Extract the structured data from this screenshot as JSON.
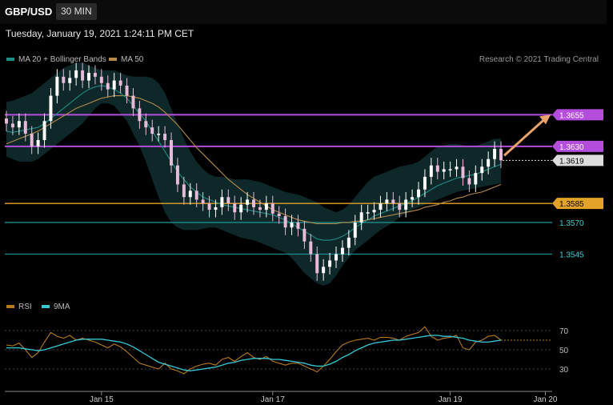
{
  "header": {
    "symbol": "GBP/USD",
    "timeframe": "30 MIN",
    "datetime": "Tuesday, January 19, 2021 1:24:11 PM CET"
  },
  "legend": {
    "ma_bb": "MA 20 + Bollinger Bands",
    "ma50": "MA 50",
    "rsi": "RSI",
    "ma9": "9MA"
  },
  "credit": "Research © 2021 Trading Central",
  "colors": {
    "bg": "#000000",
    "up": "#ffffff",
    "down": "#e8b9d8",
    "ma20": "#1f8c85",
    "ma50": "#b58a4a",
    "band": "#0f2a2b",
    "resistance": "#b44ddb",
    "support_orange": "#e3a328",
    "support_teal": "#1e8c8c",
    "rsi": "#b87a1f",
    "ma9": "#37c8d6",
    "arrow": "#e8a36a"
  },
  "chart_data": {
    "type": "line",
    "title": "GBP/USD",
    "price_axis": {
      "min": 1.3515,
      "max": 1.3695
    },
    "x_ticks": [
      {
        "index": 15,
        "label": "Jan 15"
      },
      {
        "index": 42,
        "label": "Jan 17"
      },
      {
        "index": 70,
        "label": "Jan 19"
      },
      {
        "index": 85,
        "label": "Jan 20"
      }
    ],
    "levels": [
      {
        "value": 1.3655,
        "label": "1.3655",
        "style": "resistance"
      },
      {
        "value": 1.363,
        "label": "1.3630",
        "style": "resistance"
      },
      {
        "value": 1.3619,
        "label": "1.3619",
        "style": "current"
      },
      {
        "value": 1.3585,
        "label": "1.3585",
        "style": "support_orange"
      },
      {
        "value": 1.357,
        "label": "1.3570",
        "style": "support_teal"
      },
      {
        "value": 1.3545,
        "label": "1.3545",
        "style": "support_teal"
      }
    ],
    "series": [
      {
        "name": "Close",
        "values": [
          1.3648,
          1.3645,
          1.365,
          1.364,
          1.363,
          1.3635,
          1.365,
          1.367,
          1.3685,
          1.368,
          1.3684,
          1.369,
          1.3682,
          1.3688,
          1.3685,
          1.368,
          1.3675,
          1.3682,
          1.3678,
          1.367,
          1.366,
          1.365,
          1.3645,
          1.364,
          1.364,
          1.3635,
          1.3615,
          1.36,
          1.359,
          1.3595,
          1.3588,
          1.3585,
          1.358,
          1.3582,
          1.359,
          1.3585,
          1.3578,
          1.3584,
          1.3588,
          1.3582,
          1.358,
          1.3585,
          1.3577,
          1.3575,
          1.3566,
          1.357,
          1.3565,
          1.3555,
          1.3545,
          1.353,
          1.3535,
          1.354,
          1.3545,
          1.355,
          1.3558,
          1.357,
          1.3578,
          1.3578,
          1.358,
          1.3585,
          1.3588,
          1.3585,
          1.358,
          1.3588,
          1.359,
          1.3596,
          1.3606,
          1.3615,
          1.361,
          1.3612,
          1.3612,
          1.3614,
          1.3605,
          1.36,
          1.3609,
          1.3614,
          1.362,
          1.3628,
          1.3619
        ]
      },
      {
        "name": "MA 20",
        "values": [
          1.3642,
          1.3641,
          1.3642,
          1.3643,
          1.3644,
          1.3645,
          1.3648,
          1.3652,
          1.3656,
          1.366,
          1.3664,
          1.3668,
          1.3672,
          1.3675,
          1.3677,
          1.3678,
          1.3677,
          1.3675,
          1.3672,
          1.3668,
          1.3662,
          1.3656,
          1.365,
          1.3642,
          1.3634,
          1.3626,
          1.3618,
          1.361,
          1.3604,
          1.3598,
          1.3594,
          1.359,
          1.3588,
          1.3586,
          1.3584,
          1.3583,
          1.3582,
          1.3581,
          1.358,
          1.3579,
          1.3578,
          1.3577,
          1.3576,
          1.3574,
          1.3572,
          1.3569,
          1.3566,
          1.3563,
          1.356,
          1.3557,
          1.3556,
          1.3556,
          1.3557,
          1.3559,
          1.3562,
          1.3566,
          1.3569,
          1.3572,
          1.3575,
          1.3577,
          1.3579,
          1.3581,
          1.3583,
          1.3585,
          1.3587,
          1.359,
          1.3593,
          1.3596,
          1.3599,
          1.3601,
          1.3603,
          1.3605,
          1.3606,
          1.3607,
          1.3608,
          1.361,
          1.3612,
          1.3614,
          1.3616
        ]
      },
      {
        "name": "Upper Band",
        "values": [
          1.3665,
          1.3666,
          1.3668,
          1.367,
          1.3672,
          1.3676,
          1.368,
          1.3684,
          1.3688,
          1.3692,
          1.3694,
          1.3696,
          1.3696,
          1.3694,
          1.3692,
          1.369,
          1.369,
          1.369,
          1.3688,
          1.3686,
          1.3685,
          1.3685,
          1.3685,
          1.3684,
          1.368,
          1.3672,
          1.366,
          1.3648,
          1.3636,
          1.3626,
          1.3618,
          1.3612,
          1.3608,
          1.3606,
          1.3606,
          1.3605,
          1.3604,
          1.3604,
          1.3604,
          1.3603,
          1.3602,
          1.36,
          1.3598,
          1.3596,
          1.3594,
          1.3593,
          1.3592,
          1.359,
          1.3588,
          1.3586,
          1.3582,
          1.358,
          1.3578,
          1.358,
          1.3584,
          1.359,
          1.3596,
          1.3602,
          1.3606,
          1.3608,
          1.361,
          1.3612,
          1.3614,
          1.3615,
          1.3616,
          1.3618,
          1.3622,
          1.3626,
          1.363,
          1.3631,
          1.3632,
          1.3632,
          1.3631,
          1.363,
          1.363,
          1.3632,
          1.3634,
          1.3636,
          1.3636
        ]
      },
      {
        "name": "Lower Band",
        "values": [
          1.3622,
          1.362,
          1.3618,
          1.3618,
          1.3618,
          1.362,
          1.3624,
          1.3628,
          1.3632,
          1.3636,
          1.364,
          1.3644,
          1.3648,
          1.3654,
          1.366,
          1.3664,
          1.3664,
          1.3662,
          1.3656,
          1.365,
          1.364,
          1.363,
          1.3618,
          1.3604,
          1.359,
          1.3578,
          1.357,
          1.3566,
          1.3564,
          1.3564,
          1.3564,
          1.3565,
          1.3566,
          1.3566,
          1.3564,
          1.3562,
          1.356,
          1.3558,
          1.3557,
          1.3556,
          1.3554,
          1.3552,
          1.355,
          1.3548,
          1.3546,
          1.3542,
          1.3536,
          1.353,
          1.3526,
          1.3522,
          1.352,
          1.3522,
          1.3528,
          1.3536,
          1.3542,
          1.3548,
          1.3552,
          1.3556,
          1.356,
          1.3564,
          1.3567,
          1.357,
          1.3574,
          1.3577,
          1.358,
          1.3582,
          1.3584,
          1.3586,
          1.3588,
          1.359,
          1.3592,
          1.3594,
          1.3595,
          1.3596,
          1.3597,
          1.3598,
          1.3599,
          1.36,
          1.3601
        ]
      },
      {
        "name": "MA 50",
        "values": [
          1.3632,
          1.3634,
          1.3636,
          1.3638,
          1.364,
          1.3642,
          1.3645,
          1.3648,
          1.3651,
          1.3654,
          1.3657,
          1.366,
          1.3662,
          1.3664,
          1.3666,
          1.3668,
          1.3669,
          1.367,
          1.367,
          1.367,
          1.3669,
          1.3668,
          1.3666,
          1.3664,
          1.3661,
          1.3657,
          1.3652,
          1.3647,
          1.3641,
          1.3635,
          1.3629,
          1.3624,
          1.3619,
          1.3614,
          1.3609,
          1.3604,
          1.36,
          1.3596,
          1.3592,
          1.3589,
          1.3586,
          1.3583,
          1.358,
          1.3578,
          1.3576,
          1.3574,
          1.3572,
          1.3571,
          1.357,
          1.3569,
          1.3569,
          1.3569,
          1.3569,
          1.357,
          1.357,
          1.3571,
          1.3571,
          1.3572,
          1.3573,
          1.3574,
          1.3575,
          1.3576,
          1.3577,
          1.3578,
          1.3579,
          1.358,
          1.3582,
          1.3583,
          1.3584,
          1.3586,
          1.3587,
          1.3589,
          1.359,
          1.3592,
          1.3593,
          1.3594,
          1.3596,
          1.3598,
          1.36
        ]
      },
      {
        "name": "RSI",
        "values": [
          55,
          54,
          57,
          50,
          42,
          47,
          58,
          68,
          64,
          62,
          65,
          60,
          62,
          60,
          58,
          55,
          52,
          56,
          53,
          48,
          42,
          36,
          34,
          32,
          30,
          36,
          30,
          28,
          25,
          30,
          33,
          35,
          36,
          34,
          40,
          42,
          38,
          43,
          47,
          42,
          40,
          43,
          38,
          36,
          34,
          36,
          36,
          33,
          30,
          27,
          33,
          40,
          48,
          55,
          58,
          60,
          61,
          62,
          60,
          63,
          63,
          62,
          60,
          64,
          66,
          68,
          74,
          64,
          60,
          62,
          63,
          65,
          52,
          50,
          58,
          60,
          64,
          65,
          60
        ]
      },
      {
        "name": "9MA",
        "values": [
          52,
          52,
          52,
          51,
          50,
          49,
          50,
          52,
          54,
          56,
          58,
          60,
          61,
          61,
          61,
          61,
          60,
          59,
          58,
          56,
          53,
          49,
          45,
          41,
          37,
          35,
          33,
          31,
          29,
          28,
          29,
          30,
          31,
          32,
          34,
          36,
          37,
          39,
          40,
          41,
          41,
          41,
          40,
          40,
          39,
          38,
          37,
          36,
          34,
          33,
          33,
          35,
          38,
          42,
          45,
          49,
          52,
          55,
          57,
          58,
          59,
          60,
          60,
          61,
          62,
          63,
          64,
          65,
          65,
          64,
          64,
          63,
          62,
          60,
          59,
          58,
          58,
          59,
          60
        ]
      }
    ],
    "rsi_axis": {
      "min": 10,
      "max": 85,
      "ticks": [
        "70",
        "50",
        "30"
      ]
    }
  }
}
